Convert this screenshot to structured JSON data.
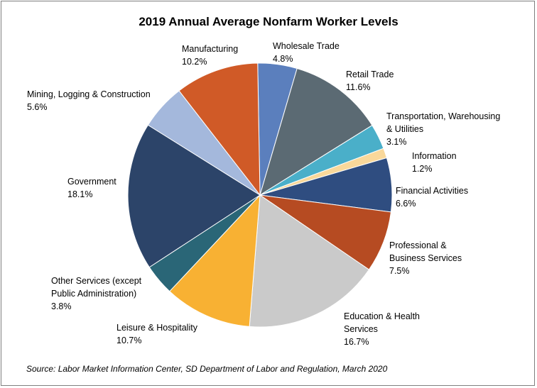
{
  "colors": {
    "frame_border": "#7f7f7f",
    "background": "#ffffff"
  },
  "chart_data": {
    "type": "pie",
    "title": "2019 Annual Average Nonfarm Worker Levels",
    "source": "Source: Labor Market Information Center, SD Department of Labor and Regulation, March 2020",
    "unit": "%",
    "slices": [
      {
        "name": "Wholesale Trade",
        "label_lines": [
          "Wholesale Trade"
        ],
        "value": 4.8,
        "value_label": "4.8%",
        "color": "#5b7fbd"
      },
      {
        "name": "Retail Trade",
        "label_lines": [
          "Retail Trade"
        ],
        "value": 11.6,
        "value_label": "11.6%",
        "color": "#5b6a73"
      },
      {
        "name": "Transportation, Warehousing & Utilities",
        "label_lines": [
          "Transportation, Warehousing",
          "& Utilities"
        ],
        "value": 3.1,
        "value_label": "3.1%",
        "color": "#4aafc9"
      },
      {
        "name": "Information",
        "label_lines": [
          "Information"
        ],
        "value": 1.2,
        "value_label": "1.2%",
        "color": "#f9d89a"
      },
      {
        "name": "Financial Activities",
        "label_lines": [
          "Financial Activities"
        ],
        "value": 6.6,
        "value_label": "6.6%",
        "color": "#2f4d80"
      },
      {
        "name": "Professional & Business Services",
        "label_lines": [
          "Professional &",
          "Business Services"
        ],
        "value": 7.5,
        "value_label": "7.5%",
        "color": "#b64b22"
      },
      {
        "name": "Education & Health Services",
        "label_lines": [
          "Education & Health",
          "Services"
        ],
        "value": 16.7,
        "value_label": "16.7%",
        "color": "#cacaca"
      },
      {
        "name": "Leisure & Hospitality",
        "label_lines": [
          "Leisure & Hospitality"
        ],
        "value": 10.7,
        "value_label": "10.7%",
        "color": "#f8b133"
      },
      {
        "name": "Other Services (except Public Administration)",
        "label_lines": [
          "Other Services (except",
          "Public Administration)"
        ],
        "value": 3.8,
        "value_label": "3.8%",
        "color": "#2a6677"
      },
      {
        "name": "Government",
        "label_lines": [
          "Government"
        ],
        "value": 18.1,
        "value_label": "18.1%",
        "color": "#2c4469"
      },
      {
        "name": "Mining, Logging & Construction",
        "label_lines": [
          "Mining, Logging & Construction"
        ],
        "value": 5.6,
        "value_label": "5.6%",
        "color": "#a4b8dc"
      },
      {
        "name": "Manufacturing",
        "label_lines": [
          "Manufacturing"
        ],
        "value": 10.2,
        "value_label": "10.2%",
        "color": "#d05a27"
      }
    ]
  }
}
